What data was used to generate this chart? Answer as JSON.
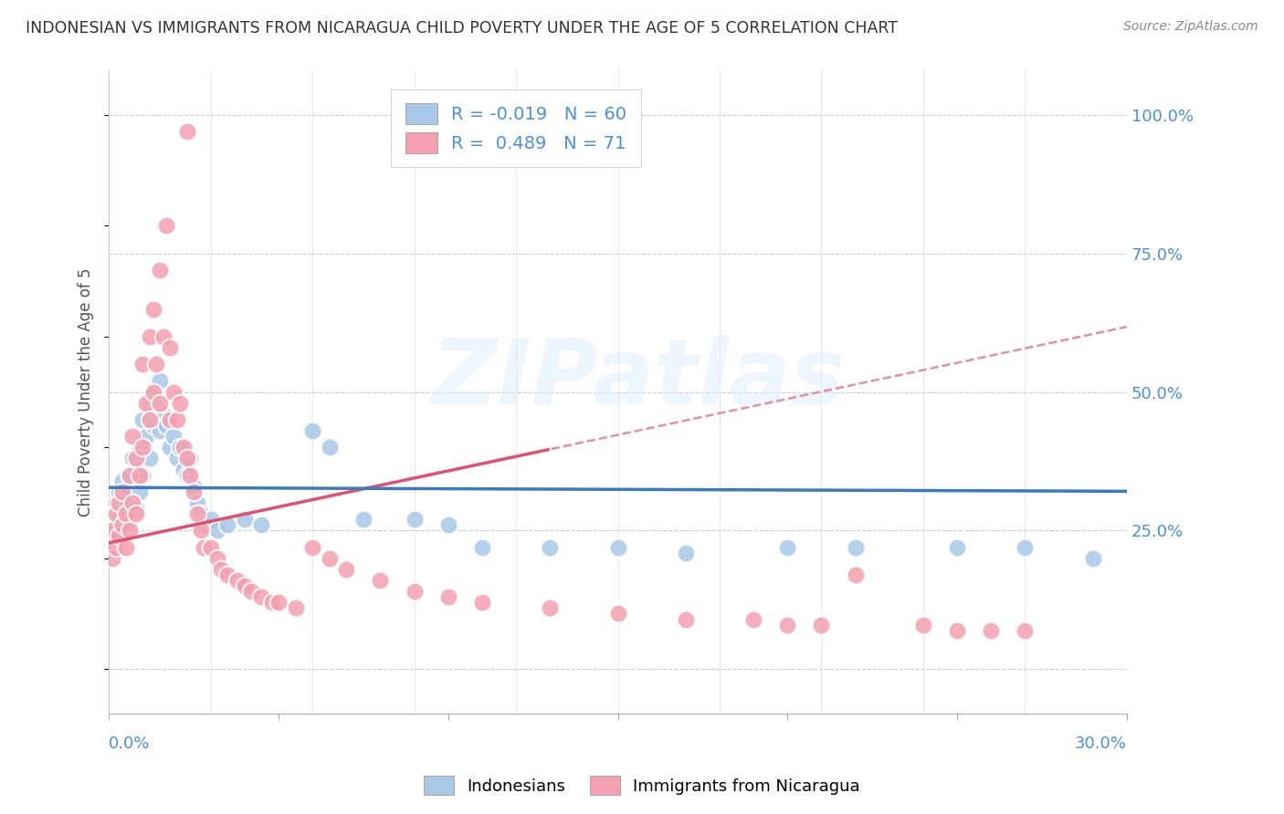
{
  "title": "INDONESIAN VS IMMIGRANTS FROM NICARAGUA CHILD POVERTY UNDER THE AGE OF 5 CORRELATION CHART",
  "source": "Source: ZipAtlas.com",
  "ylabel": "Child Poverty Under the Age of 5",
  "yticks": [
    0.0,
    0.25,
    0.5,
    0.75,
    1.0
  ],
  "ytick_labels": [
    "",
    "25.0%",
    "50.0%",
    "75.0%",
    "100.0%"
  ],
  "xmin": 0.0,
  "xmax": 0.3,
  "ymin": -0.08,
  "ymax": 1.08,
  "indonesian_color": "#a8c8e8",
  "nicaragua_color": "#f4a0b0",
  "trend_indonesian_color": "#3a7abf",
  "trend_nicaragua_color": "#e05070",
  "trend_nicaragua_dashed_color": "#e090a8",
  "watermark": "ZIPatlas",
  "legend_R1": "-0.019",
  "legend_N1": "60",
  "legend_R2": "0.489",
  "legend_N2": "71",
  "indonesian_R": -0.019,
  "nicaragua_R": 0.489,
  "ind_x": [
    0.001,
    0.001,
    0.002,
    0.002,
    0.003,
    0.003,
    0.004,
    0.004,
    0.005,
    0.005,
    0.006,
    0.006,
    0.007,
    0.007,
    0.008,
    0.008,
    0.009,
    0.009,
    0.01,
    0.01,
    0.011,
    0.012,
    0.012,
    0.013,
    0.013,
    0.014,
    0.015,
    0.015,
    0.016,
    0.017,
    0.018,
    0.019,
    0.02,
    0.021,
    0.022,
    0.023,
    0.024,
    0.025,
    0.026,
    0.027,
    0.028,
    0.03,
    0.032,
    0.035,
    0.04,
    0.045,
    0.06,
    0.065,
    0.075,
    0.09,
    0.1,
    0.11,
    0.13,
    0.15,
    0.17,
    0.2,
    0.22,
    0.25,
    0.27,
    0.29
  ],
  "ind_y": [
    0.24,
    0.28,
    0.26,
    0.3,
    0.27,
    0.32,
    0.25,
    0.34,
    0.26,
    0.31,
    0.28,
    0.35,
    0.3,
    0.38,
    0.29,
    0.36,
    0.32,
    0.4,
    0.35,
    0.45,
    0.42,
    0.38,
    0.48,
    0.44,
    0.5,
    0.47,
    0.43,
    0.52,
    0.46,
    0.44,
    0.4,
    0.42,
    0.38,
    0.4,
    0.36,
    0.35,
    0.38,
    0.33,
    0.3,
    0.28,
    0.26,
    0.27,
    0.25,
    0.26,
    0.27,
    0.26,
    0.43,
    0.4,
    0.27,
    0.27,
    0.26,
    0.22,
    0.22,
    0.22,
    0.21,
    0.22,
    0.22,
    0.22,
    0.22,
    0.2
  ],
  "nic_x": [
    0.001,
    0.001,
    0.002,
    0.002,
    0.003,
    0.003,
    0.004,
    0.004,
    0.005,
    0.005,
    0.006,
    0.006,
    0.007,
    0.007,
    0.008,
    0.008,
    0.009,
    0.01,
    0.01,
    0.011,
    0.012,
    0.012,
    0.013,
    0.013,
    0.014,
    0.015,
    0.015,
    0.016,
    0.017,
    0.018,
    0.018,
    0.019,
    0.02,
    0.021,
    0.022,
    0.023,
    0.024,
    0.025,
    0.026,
    0.027,
    0.028,
    0.03,
    0.032,
    0.033,
    0.035,
    0.038,
    0.04,
    0.042,
    0.045,
    0.048,
    0.05,
    0.055,
    0.06,
    0.065,
    0.07,
    0.08,
    0.09,
    0.1,
    0.11,
    0.13,
    0.15,
    0.17,
    0.19,
    0.2,
    0.21,
    0.22,
    0.24,
    0.25,
    0.26,
    0.27,
    0.023
  ],
  "nic_y": [
    0.2,
    0.25,
    0.22,
    0.28,
    0.24,
    0.3,
    0.26,
    0.32,
    0.22,
    0.28,
    0.25,
    0.35,
    0.3,
    0.42,
    0.28,
    0.38,
    0.35,
    0.4,
    0.55,
    0.48,
    0.45,
    0.6,
    0.65,
    0.5,
    0.55,
    0.48,
    0.72,
    0.6,
    0.8,
    0.58,
    0.45,
    0.5,
    0.45,
    0.48,
    0.4,
    0.38,
    0.35,
    0.32,
    0.28,
    0.25,
    0.22,
    0.22,
    0.2,
    0.18,
    0.17,
    0.16,
    0.15,
    0.14,
    0.13,
    0.12,
    0.12,
    0.11,
    0.22,
    0.2,
    0.18,
    0.16,
    0.14,
    0.13,
    0.12,
    0.11,
    0.1,
    0.09,
    0.09,
    0.08,
    0.08,
    0.17,
    0.08,
    0.07,
    0.07,
    0.07,
    0.97
  ]
}
